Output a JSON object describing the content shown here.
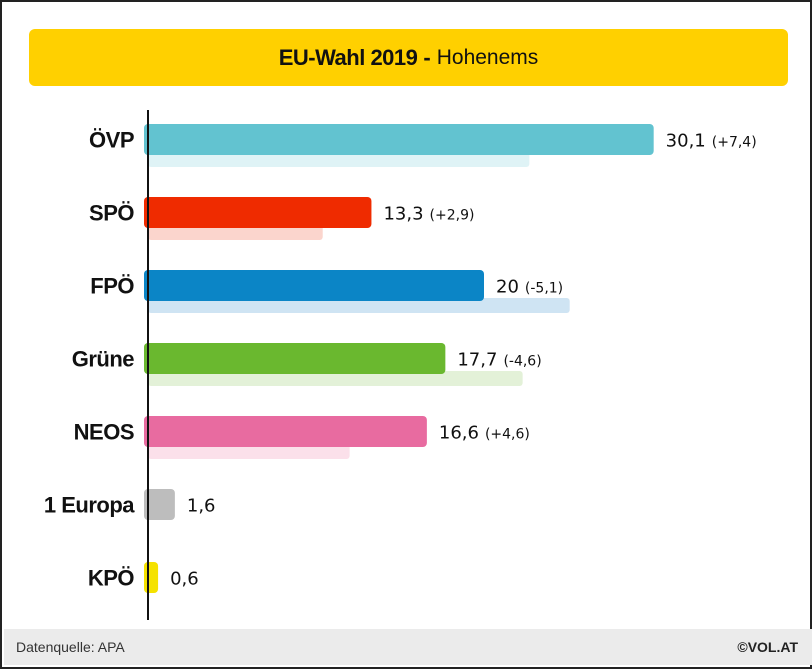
{
  "title": {
    "main": "EU-Wahl 2019",
    "separator": "-",
    "sub": "Hohenems"
  },
  "footer": {
    "source": "Datenquelle: APA",
    "brand": "©VOL.AT"
  },
  "chart_data": {
    "type": "bar",
    "orientation": "horizontal",
    "categories": [
      "ÖVP",
      "SPÖ",
      "FPÖ",
      "Grüne",
      "NEOS",
      "1 Europa",
      "KPÖ"
    ],
    "series": [
      {
        "values": [
          30.1,
          13.3,
          20,
          17.7,
          16.6,
          1.6,
          0.6
        ],
        "value_labels": [
          "30,1",
          "13,3",
          "20",
          "17,7",
          "16,6",
          "1,6",
          "0,6"
        ]
      },
      {
        "values": [
          22.7,
          10.4,
          25.1,
          22.3,
          12.0,
          null,
          null
        ]
      }
    ],
    "change_labels": [
      "(+7,4)",
      "(+2,9)",
      "(-5,1)",
      "(-4,6)",
      "(+4,6)",
      "",
      ""
    ],
    "colors": [
      "#62c3d0",
      "#ef2b00",
      "#0b85c6",
      "#6ab82f",
      "#e86ba0",
      "#bdbdbd",
      "#f5e200"
    ],
    "prev_colors": [
      "#dff3f6",
      "#fbd5cd",
      "#cfe4f3",
      "#e3f1d8",
      "#fbe0ea",
      "#ececec",
      "#fdf6b8"
    ],
    "xlim": [
      0,
      35
    ],
    "grid": false,
    "legend": "none"
  }
}
